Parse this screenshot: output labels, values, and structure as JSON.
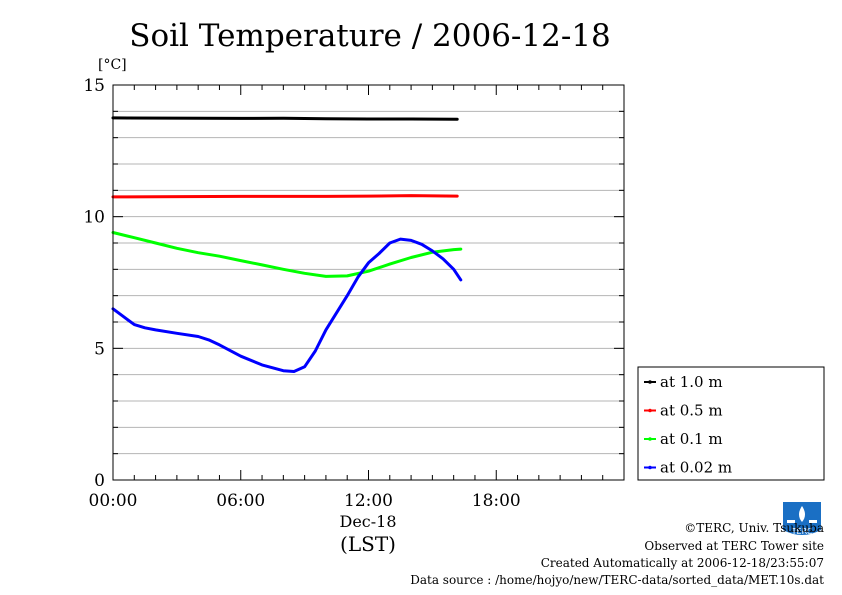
{
  "chart_data": {
    "type": "line",
    "title": "Soil Temperature / 2006-12-18",
    "ylabel": "[°C]",
    "xlabel": "(LST)",
    "x_date_label": "Dec-18",
    "xlim": [
      "00:00",
      "24:00"
    ],
    "ylim": [
      0,
      15
    ],
    "x_ticks": [
      "00:00",
      "06:00",
      "12:00",
      "18:00"
    ],
    "y_ticks": [
      "0",
      "5",
      "10",
      "15"
    ],
    "grid": true,
    "legend_position": "right-bottom",
    "series": [
      {
        "name": "at 1.0 m",
        "color": "#000000",
        "x": [
          "00:00",
          "06:00",
          "08:00",
          "10:00",
          "12:00",
          "14:00",
          "16:10"
        ],
        "y": [
          13.75,
          13.73,
          13.74,
          13.72,
          13.71,
          13.71,
          13.7
        ]
      },
      {
        "name": "at 0.5 m",
        "color": "#ff0000",
        "x": [
          "00:00",
          "06:00",
          "10:00",
          "12:00",
          "14:00",
          "16:10"
        ],
        "y": [
          10.75,
          10.77,
          10.77,
          10.78,
          10.8,
          10.78
        ]
      },
      {
        "name": "at 0.1 m",
        "color": "#00ff00",
        "x": [
          "00:00",
          "01:00",
          "02:00",
          "03:00",
          "04:00",
          "05:00",
          "06:00",
          "07:00",
          "08:00",
          "09:00",
          "10:00",
          "11:00",
          "12:00",
          "13:00",
          "14:00",
          "15:00",
          "16:00",
          "16:20"
        ],
        "y": [
          9.4,
          9.2,
          9.0,
          8.8,
          8.63,
          8.5,
          8.33,
          8.17,
          8.0,
          7.85,
          7.73,
          7.75,
          7.93,
          8.2,
          8.45,
          8.65,
          8.75,
          8.77
        ]
      },
      {
        "name": "at 0.02 m",
        "color": "#0000ff",
        "x": [
          "00:00",
          "00:30",
          "01:00",
          "01:30",
          "02:00",
          "03:00",
          "04:00",
          "04:30",
          "05:00",
          "06:00",
          "07:00",
          "08:00",
          "08:30",
          "09:00",
          "09:30",
          "10:00",
          "11:00",
          "11:30",
          "12:00",
          "12:30",
          "13:00",
          "13:30",
          "14:00",
          "14:30",
          "15:00",
          "15:30",
          "16:00",
          "16:20"
        ],
        "y": [
          6.5,
          6.2,
          5.9,
          5.78,
          5.7,
          5.57,
          5.45,
          5.32,
          5.13,
          4.7,
          4.37,
          4.15,
          4.12,
          4.3,
          4.9,
          5.7,
          7.0,
          7.7,
          8.25,
          8.6,
          9.0,
          9.15,
          9.1,
          8.95,
          8.7,
          8.4,
          8.0,
          7.6
        ]
      }
    ]
  },
  "credits": {
    "copyright": "©TERC, Univ. Tsukuba",
    "site": "Observed at TERC Tower site",
    "created": "Created Automatically at 2006-12-18/23:55:07",
    "source": "Data source : /home/hojyo/new/TERC-data/sorted_data/MET.10s.dat",
    "logo_text": "TERC"
  },
  "colors": {
    "grid": "#b4b4b4",
    "logo_blue": "#1a6fc4"
  }
}
